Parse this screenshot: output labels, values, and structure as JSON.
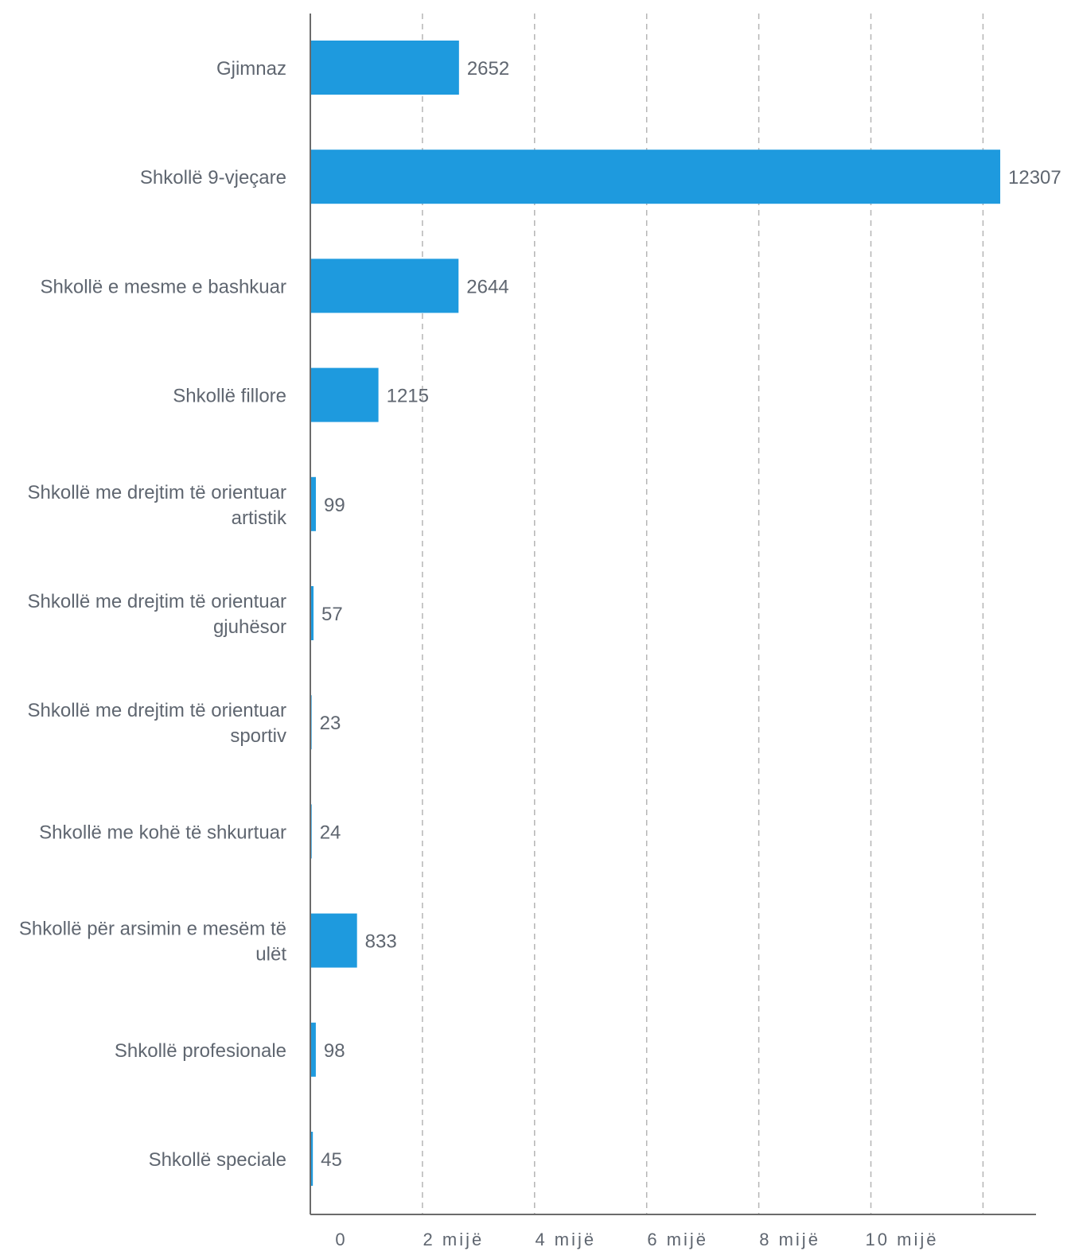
{
  "chart_data": {
    "type": "bar",
    "orientation": "horizontal",
    "title": "",
    "xlabel": "",
    "ylabel": "",
    "xlim": [
      0,
      12900
    ],
    "grid": true,
    "bar_color": "#1e9ade",
    "categories": [
      [
        "Gjimnaz"
      ],
      [
        "Shkollë 9-vjeçare"
      ],
      [
        "Shkollë e mesme e bashkuar"
      ],
      [
        "Shkollë fillore"
      ],
      [
        "Shkollë me drejtim të orientuar",
        "artistik"
      ],
      [
        "Shkollë me drejtim të orientuar",
        "gjuhësor"
      ],
      [
        "Shkollë me drejtim të orientuar",
        "sportiv"
      ],
      [
        "Shkollë me kohë të shkurtuar"
      ],
      [
        "Shkollë për arsimin e mesëm të",
        "ulët"
      ],
      [
        "Shkollë profesionale"
      ],
      [
        "Shkollë speciale"
      ]
    ],
    "values": [
      2652,
      12307,
      2644,
      1215,
      99,
      57,
      23,
      24,
      833,
      98,
      45
    ],
    "ticks": [
      0,
      2000,
      4000,
      6000,
      8000,
      10000,
      12000
    ],
    "tick_labels": [
      "0",
      "2 mijë",
      "4 mijë",
      "6 mijë",
      "8 mijë",
      "10 mijë",
      ""
    ]
  }
}
